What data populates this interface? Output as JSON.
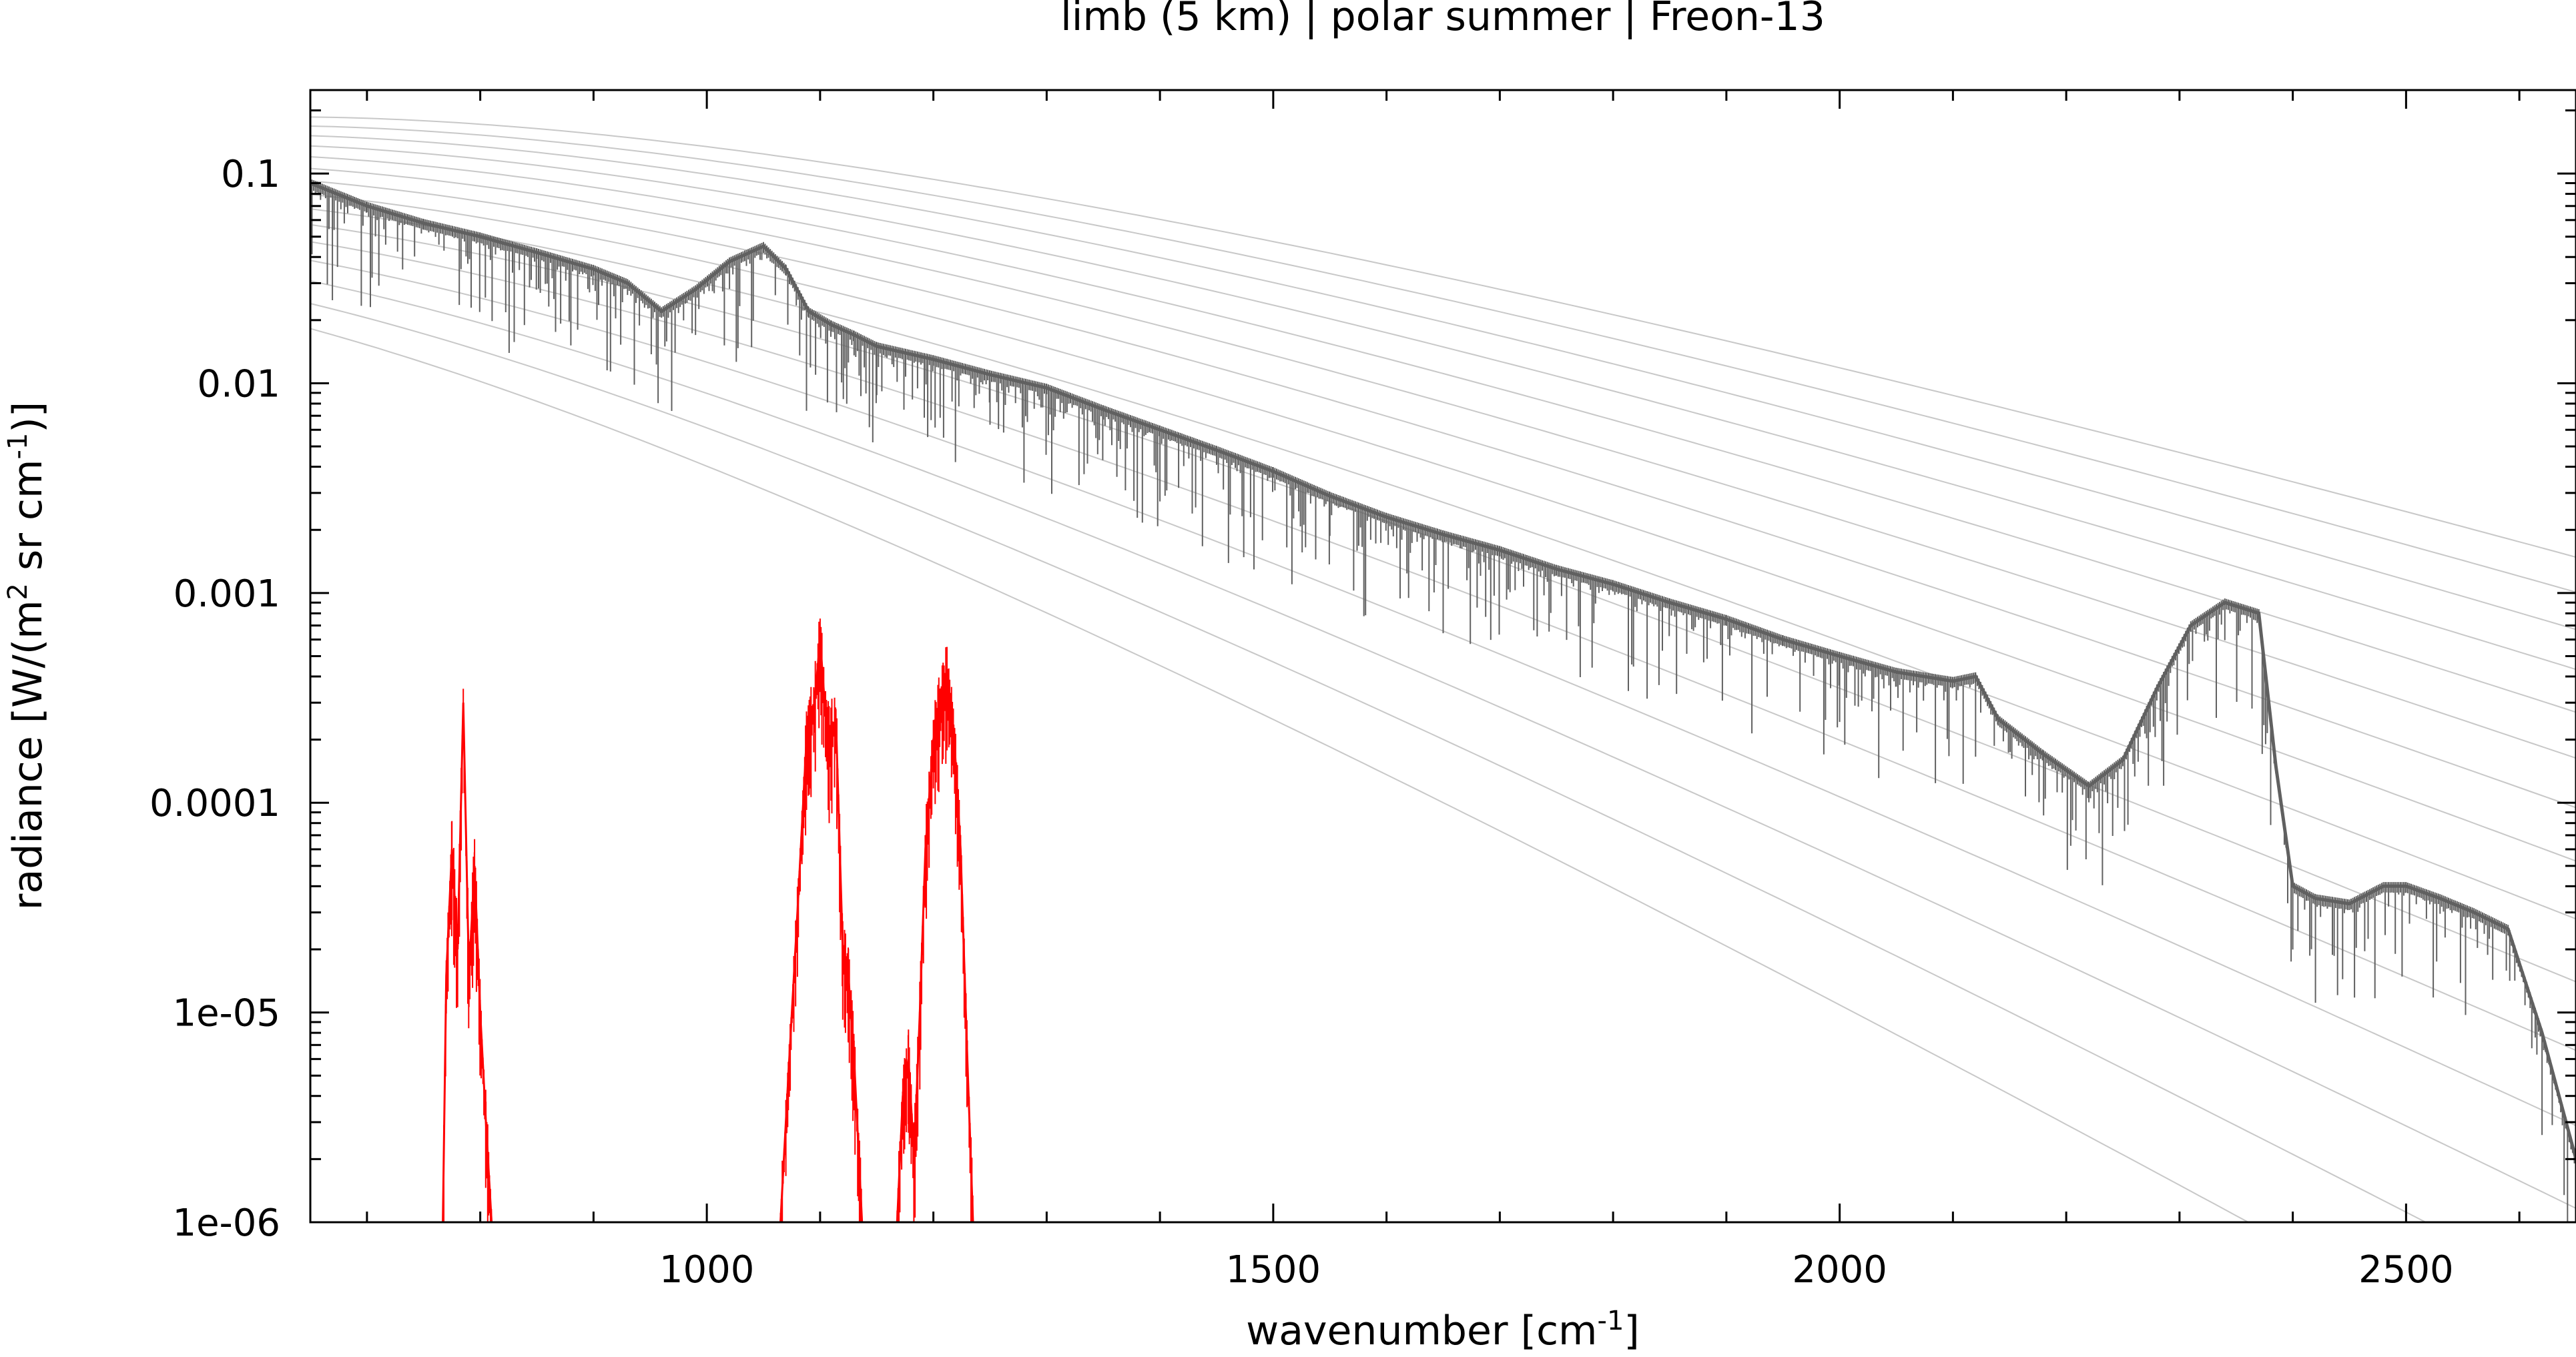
{
  "chart_data": {
    "type": "line",
    "title": "limb (5 km) | polar summer | Freon-13",
    "xlabel": {
      "main": "wavenumber [cm",
      "sup": "-1",
      "tail": "]"
    },
    "ylabel": {
      "p1": "radiance [W/(m",
      "sup1": "2",
      "p2": " sr cm",
      "sup2": "-1",
      "p3": ")]"
    },
    "xlim": [
      650,
      2650
    ],
    "ylim": [
      1e-06,
      0.25
    ],
    "yscale": "log",
    "grid": false,
    "x_ticks": [
      {
        "value": 1000,
        "label": "1000"
      },
      {
        "value": 1500,
        "label": "1500"
      },
      {
        "value": 2000,
        "label": "2000"
      },
      {
        "value": 2500,
        "label": "2500"
      }
    ],
    "y_ticks": [
      {
        "value": 0.1,
        "label": "0.1"
      },
      {
        "value": 0.01,
        "label": "0.01"
      },
      {
        "value": 0.001,
        "label": "0.001"
      },
      {
        "value": 0.0001,
        "label": "0.0001"
      },
      {
        "value": 1e-05,
        "label": "1e-05"
      },
      {
        "value": 1e-06,
        "label": "1e-06"
      }
    ],
    "reference_curves": {
      "kind": "planck",
      "color": "#c8c8c8",
      "temperatures_K": [
        180,
        190,
        200,
        210,
        220,
        230,
        240,
        250,
        260,
        270,
        280,
        290,
        300,
        310,
        320
      ]
    },
    "series": [
      {
        "color": "#606060",
        "x": [
          650,
          700,
          750,
          800,
          850,
          900,
          930,
          960,
          990,
          1020,
          1050,
          1070,
          1090,
          1110,
          1130,
          1150,
          1200,
          1250,
          1300,
          1350,
          1400,
          1450,
          1500,
          1550,
          1600,
          1650,
          1700,
          1750,
          1800,
          1850,
          1900,
          1950,
          2000,
          2050,
          2100,
          2120,
          2140,
          2180,
          2220,
          2250,
          2280,
          2310,
          2340,
          2370,
          2385,
          2400,
          2420,
          2450,
          2480,
          2500,
          2530,
          2560,
          2590,
          2620,
          2650
        ],
        "y": [
          0.09,
          0.07,
          0.058,
          0.05,
          0.042,
          0.035,
          0.03,
          0.022,
          0.028,
          0.038,
          0.045,
          0.035,
          0.022,
          0.019,
          0.017,
          0.015,
          0.013,
          0.011,
          0.0095,
          0.0075,
          0.006,
          0.0048,
          0.0038,
          0.0029,
          0.0023,
          0.0019,
          0.0016,
          0.0013,
          0.0011,
          0.0009,
          0.00075,
          0.0006,
          0.0005,
          0.00042,
          0.00038,
          0.0004,
          0.00025,
          0.00017,
          0.00012,
          0.00016,
          0.00035,
          0.0007,
          0.0009,
          0.0008,
          0.00015,
          4e-05,
          3.5e-05,
          3.3e-05,
          4e-05,
          4e-05,
          3.5e-05,
          3e-05,
          2.5e-05,
          8e-06,
          2e-06
        ]
      },
      {
        "color": "#ff0000",
        "segments": [
          {
            "x": [
              767,
              770,
              775,
              780,
              785,
              790,
              795,
              800,
              805,
              810
            ],
            "y": [
              1e-06,
              1.5e-05,
              6e-05,
              2e-05,
              0.0003,
              1.5e-05,
              5e-05,
              1e-05,
              3e-06,
              1e-06
            ]
          },
          {
            "x": [
              1065,
              1072,
              1080,
              1088,
              1095,
              1100,
              1104,
              1108,
              1114,
              1120,
              1125,
              1130,
              1137
            ],
            "y": [
              1e-06,
              5e-06,
              3e-05,
              0.0002,
              0.0003,
              0.0006,
              0.0003,
              0.0002,
              0.00025,
              2e-05,
              1.5e-05,
              6e-06,
              1e-06
            ]
          },
          {
            "x": [
              1168,
              1173,
              1178,
              1183,
              1188,
              1193,
              1200,
              1207,
              1212,
              1218,
              1224,
              1230,
              1235
            ],
            "y": [
              1e-06,
              4e-06,
              6e-06,
              2e-06,
              1e-05,
              6e-05,
              0.0002,
              0.00032,
              0.0004,
              0.00022,
              6e-05,
              6e-06,
              1e-06
            ]
          }
        ]
      }
    ]
  }
}
